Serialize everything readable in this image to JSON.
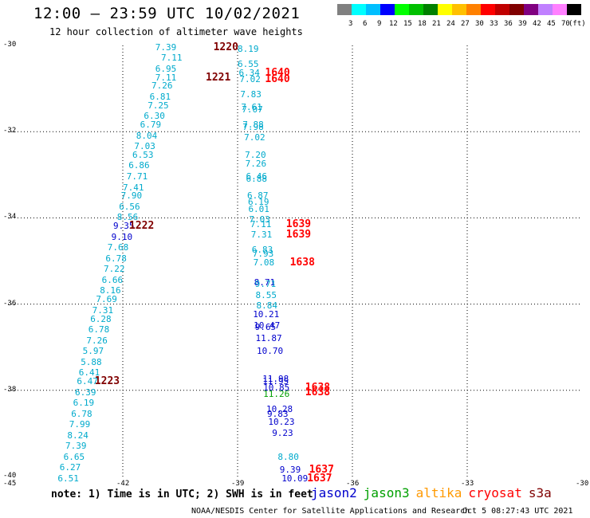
{
  "header": {
    "title": "12:00 – 23:59 UTC 10/02/2021",
    "subtitle": "12 hour collection of altimeter wave heights"
  },
  "colorbar": {
    "unit": "(ft)",
    "colors": [
      "#808080",
      "#00ffff",
      "#00bfff",
      "#0000ff",
      "#00ff00",
      "#00c000",
      "#008000",
      "#ffff00",
      "#ffc000",
      "#ff8000",
      "#ff0000",
      "#c00000",
      "#800000",
      "#800080",
      "#c080ff",
      "#ff80ff",
      "#000000"
    ],
    "labels": [
      "3",
      "6",
      "9",
      "12",
      "15",
      "18",
      "21",
      "24",
      "27",
      "30",
      "33",
      "36",
      "39",
      "42",
      "45",
      "70"
    ]
  },
  "axes": {
    "x_ticks": [
      "-45",
      "-42",
      "-39",
      "-36",
      "-33",
      "-30"
    ],
    "y_ticks": [
      "-30",
      "-32",
      "-34",
      "-36",
      "-38",
      "-40"
    ],
    "grid": "dotted"
  },
  "colors": {
    "cyan": "#00aacc",
    "blue": "#0000cc",
    "green": "#00a000",
    "dark_red": "#800000",
    "red": "#ff0000",
    "orange": "#ff9900"
  },
  "observations": [
    {
      "v": "7.39",
      "lon": -40.9,
      "lat": -30.05,
      "c": "cyan"
    },
    {
      "v": "7.11",
      "lon": -40.75,
      "lat": -30.3,
      "c": "cyan"
    },
    {
      "v": "6.95",
      "lon": -40.9,
      "lat": -30.55,
      "c": "cyan"
    },
    {
      "v": "7.11",
      "lon": -40.9,
      "lat": -30.75,
      "c": "cyan"
    },
    {
      "v": "7.26",
      "lon": -41.0,
      "lat": -30.95,
      "c": "cyan"
    },
    {
      "v": "6.81",
      "lon": -41.05,
      "lat": -31.2,
      "c": "cyan"
    },
    {
      "v": "7.25",
      "lon": -41.1,
      "lat": -31.4,
      "c": "cyan"
    },
    {
      "v": "6.30",
      "lon": -41.2,
      "lat": -31.65,
      "c": "cyan"
    },
    {
      "v": "6.79",
      "lon": -41.3,
      "lat": -31.85,
      "c": "cyan"
    },
    {
      "v": "8.04",
      "lon": -41.4,
      "lat": -32.1,
      "c": "cyan"
    },
    {
      "v": "7.03",
      "lon": -41.45,
      "lat": -32.35,
      "c": "cyan"
    },
    {
      "v": "6.53",
      "lon": -41.5,
      "lat": -32.55,
      "c": "cyan"
    },
    {
      "v": "6.86",
      "lon": -41.6,
      "lat": -32.8,
      "c": "cyan"
    },
    {
      "v": "7.71",
      "lon": -41.65,
      "lat": -33.05,
      "c": "cyan"
    },
    {
      "v": "7.41",
      "lon": -41.75,
      "lat": -33.3,
      "c": "cyan"
    },
    {
      "v": "7.90",
      "lon": -41.8,
      "lat": -33.5,
      "c": "cyan"
    },
    {
      "v": "6.56",
      "lon": -41.85,
      "lat": -33.75,
      "c": "cyan"
    },
    {
      "v": "8.56",
      "lon": -41.9,
      "lat": -34.0,
      "c": "cyan"
    },
    {
      "v": "9.35",
      "lon": -42.0,
      "lat": -34.2,
      "c": "blue"
    },
    {
      "v": "9.10",
      "lon": -42.05,
      "lat": -34.45,
      "c": "blue"
    },
    {
      "v": "7.68",
      "lon": -42.15,
      "lat": -34.7,
      "c": "cyan"
    },
    {
      "v": "6.78",
      "lon": -42.2,
      "lat": -34.95,
      "c": "cyan"
    },
    {
      "v": "7.22",
      "lon": -42.25,
      "lat": -35.2,
      "c": "cyan"
    },
    {
      "v": "6.66",
      "lon": -42.3,
      "lat": -35.45,
      "c": "cyan"
    },
    {
      "v": "8.16",
      "lon": -42.35,
      "lat": -35.7,
      "c": "cyan"
    },
    {
      "v": "7.69",
      "lon": -42.45,
      "lat": -35.9,
      "c": "cyan"
    },
    {
      "v": "7.31",
      "lon": -42.55,
      "lat": -36.15,
      "c": "cyan"
    },
    {
      "v": "6.28",
      "lon": -42.6,
      "lat": -36.35,
      "c": "cyan"
    },
    {
      "v": "6.78",
      "lon": -42.65,
      "lat": -36.6,
      "c": "cyan"
    },
    {
      "v": "7.26",
      "lon": -42.7,
      "lat": -36.85,
      "c": "cyan"
    },
    {
      "v": "5.97",
      "lon": -42.8,
      "lat": -37.1,
      "c": "cyan"
    },
    {
      "v": "5.88",
      "lon": -42.85,
      "lat": -37.35,
      "c": "cyan"
    },
    {
      "v": "6.41",
      "lon": -42.9,
      "lat": -37.6,
      "c": "cyan"
    },
    {
      "v": "6.47",
      "lon": -42.95,
      "lat": -37.8,
      "c": "cyan"
    },
    {
      "v": "6.39",
      "lon": -43.0,
      "lat": -38.05,
      "c": "cyan"
    },
    {
      "v": "6.19",
      "lon": -43.05,
      "lat": -38.3,
      "c": "cyan"
    },
    {
      "v": "6.78",
      "lon": -43.1,
      "lat": -38.55,
      "c": "cyan"
    },
    {
      "v": "7.99",
      "lon": -43.15,
      "lat": -38.8,
      "c": "cyan"
    },
    {
      "v": "8.24",
      "lon": -43.2,
      "lat": -39.05,
      "c": "cyan"
    },
    {
      "v": "7.39",
      "lon": -43.25,
      "lat": -39.3,
      "c": "cyan"
    },
    {
      "v": "6.65",
      "lon": -43.3,
      "lat": -39.55,
      "c": "cyan"
    },
    {
      "v": "6.27",
      "lon": -43.4,
      "lat": -39.8,
      "c": "cyan"
    },
    {
      "v": "6.51",
      "lon": -43.45,
      "lat": -40.05,
      "c": "cyan"
    },
    {
      "v": "8.19",
      "lon": -38.75,
      "lat": -30.1,
      "c": "cyan"
    },
    {
      "v": "6.55",
      "lon": -38.75,
      "lat": -30.45,
      "c": "cyan"
    },
    {
      "v": "6.34",
      "lon": -38.72,
      "lat": -30.65,
      "c": "cyan"
    },
    {
      "v": "7.02",
      "lon": -38.7,
      "lat": -30.8,
      "c": "cyan"
    },
    {
      "v": "7.83",
      "lon": -38.68,
      "lat": -31.15,
      "c": "cyan"
    },
    {
      "v": "7.61",
      "lon": -38.66,
      "lat": -31.45,
      "c": "cyan"
    },
    {
      "v": "7.07",
      "lon": -38.64,
      "lat": -31.5,
      "c": "cyan"
    },
    {
      "v": "7.88",
      "lon": -38.62,
      "lat": -31.85,
      "c": "cyan"
    },
    {
      "v": "7.98",
      "lon": -38.62,
      "lat": -31.9,
      "c": "cyan"
    },
    {
      "v": "7.02",
      "lon": -38.58,
      "lat": -32.15,
      "c": "cyan"
    },
    {
      "v": "7.20",
      "lon": -38.56,
      "lat": -32.55,
      "c": "cyan"
    },
    {
      "v": "7.26",
      "lon": -38.55,
      "lat": -32.75,
      "c": "cyan"
    },
    {
      "v": "6.46",
      "lon": -38.53,
      "lat": -33.05,
      "c": "cyan"
    },
    {
      "v": "6.88",
      "lon": -38.53,
      "lat": -33.1,
      "c": "cyan"
    },
    {
      "v": "6.87",
      "lon": -38.5,
      "lat": -33.5,
      "c": "cyan"
    },
    {
      "v": "6.19",
      "lon": -38.48,
      "lat": -33.65,
      "c": "cyan"
    },
    {
      "v": "6.01",
      "lon": -38.47,
      "lat": -33.8,
      "c": "cyan"
    },
    {
      "v": "7.03",
      "lon": -38.45,
      "lat": -34.05,
      "c": "cyan"
    },
    {
      "v": "7.11",
      "lon": -38.42,
      "lat": -34.15,
      "c": "cyan"
    },
    {
      "v": "7.31",
      "lon": -38.4,
      "lat": -34.4,
      "c": "cyan"
    },
    {
      "v": "6.83",
      "lon": -38.38,
      "lat": -34.75,
      "c": "cyan"
    },
    {
      "v": "7.93",
      "lon": -38.36,
      "lat": -34.85,
      "c": "cyan"
    },
    {
      "v": "7.08",
      "lon": -38.34,
      "lat": -35.05,
      "c": "cyan"
    },
    {
      "v": "8.71",
      "lon": -38.32,
      "lat": -35.5,
      "c": "blue"
    },
    {
      "v": "9.71",
      "lon": -38.3,
      "lat": -35.55,
      "c": "cyan"
    },
    {
      "v": "8.55",
      "lon": -38.28,
      "lat": -35.8,
      "c": "cyan"
    },
    {
      "v": "8.84",
      "lon": -38.26,
      "lat": -36.05,
      "c": "cyan"
    },
    {
      "v": "10.21",
      "lon": -38.35,
      "lat": -36.25,
      "c": "blue"
    },
    {
      "v": "10.47",
      "lon": -38.33,
      "lat": -36.5,
      "c": "blue"
    },
    {
      "v": "9.65",
      "lon": -38.3,
      "lat": -36.55,
      "c": "blue"
    },
    {
      "v": "11.87",
      "lon": -38.28,
      "lat": -36.8,
      "c": "blue"
    },
    {
      "v": "10.70",
      "lon": -38.25,
      "lat": -37.1,
      "c": "blue"
    },
    {
      "v": "11.98",
      "lon": -38.1,
      "lat": -37.75,
      "c": "blue"
    },
    {
      "v": "11.95",
      "lon": -38.1,
      "lat": -37.8,
      "c": "blue"
    },
    {
      "v": "10.85",
      "lon": -38.08,
      "lat": -37.95,
      "c": "blue"
    },
    {
      "v": "11.26",
      "lon": -38.08,
      "lat": -38.1,
      "c": "green"
    },
    {
      "v": "10.28",
      "lon": -38.0,
      "lat": -38.45,
      "c": "blue"
    },
    {
      "v": "9.83",
      "lon": -37.98,
      "lat": -38.55,
      "c": "blue"
    },
    {
      "v": "10.23",
      "lon": -37.95,
      "lat": -38.75,
      "c": "blue"
    },
    {
      "v": "9.23",
      "lon": -37.85,
      "lat": -39.0,
      "c": "blue"
    },
    {
      "v": "8.80",
      "lon": -37.7,
      "lat": -39.55,
      "c": "cyan"
    },
    {
      "v": "9.39",
      "lon": -37.65,
      "lat": -39.85,
      "c": "blue"
    },
    {
      "v": "10.09",
      "lon": -37.6,
      "lat": -40.05,
      "c": "blue"
    }
  ],
  "times": [
    {
      "t": "1220",
      "lon": -39.3,
      "lat": -30.05,
      "c": "dark_red"
    },
    {
      "t": "1221",
      "lon": -39.5,
      "lat": -30.75,
      "c": "dark_red"
    },
    {
      "t": "1640",
      "lon": -37.95,
      "lat": -30.65,
      "c": "red"
    },
    {
      "t": "1640",
      "lon": -37.95,
      "lat": -30.8,
      "c": "red"
    },
    {
      "t": "1222",
      "lon": -41.5,
      "lat": -34.2,
      "c": "dark_red"
    },
    {
      "t": "1639",
      "lon": -37.4,
      "lat": -34.15,
      "c": "red"
    },
    {
      "t": "1639",
      "lon": -37.4,
      "lat": -34.4,
      "c": "red"
    },
    {
      "t": "1638",
      "lon": -37.3,
      "lat": -35.05,
      "c": "red"
    },
    {
      "t": "1223",
      "lon": -42.4,
      "lat": -37.8,
      "c": "dark_red"
    },
    {
      "t": "1638",
      "lon": -36.9,
      "lat": -37.95,
      "c": "red"
    },
    {
      "t": "1638",
      "lon": -36.9,
      "lat": -38.05,
      "c": "red"
    },
    {
      "t": "1637",
      "lon": -36.8,
      "lat": -39.85,
      "c": "red"
    },
    {
      "t": "1637",
      "lon": -36.85,
      "lat": -40.05,
      "c": "red"
    }
  ],
  "note": "note:  1) Time is in UTC; 2) SWH is in feet",
  "legend": [
    {
      "name": "jason2",
      "c": "blue"
    },
    {
      "name": "jason3",
      "c": "green"
    },
    {
      "name": "altika",
      "c": "orange"
    },
    {
      "name": "cryosat",
      "c": "red"
    },
    {
      "name": "s3a",
      "c": "dark_red"
    }
  ],
  "footer": {
    "left": "NOAA/NESDIS Center for Satellite Applications and Research",
    "right": "Oct  5 08:27:43 UTC 2021"
  }
}
